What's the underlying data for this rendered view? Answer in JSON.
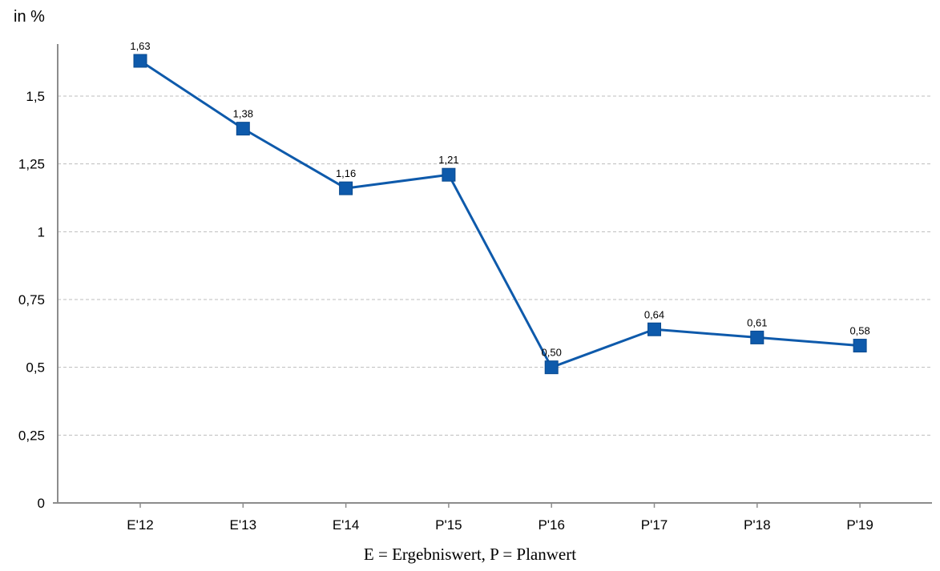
{
  "footnote": "E = Ergebniswert, P = Planwert",
  "chart_data": {
    "type": "line",
    "title": "",
    "xlabel": "",
    "ylabel": "in %",
    "categories": [
      "E'12",
      "E'13",
      "E'14",
      "P'15",
      "P'16",
      "P'17",
      "P'18",
      "P'19"
    ],
    "series": [
      {
        "values": [
          1.63,
          1.38,
          1.16,
          1.21,
          0.5,
          0.64,
          0.61,
          0.58
        ],
        "labels": [
          "1,63",
          "1,38",
          "1,16",
          "1,21",
          "0,50",
          "0,64",
          "0,61",
          "0,58"
        ],
        "color": "#0e5aab",
        "marker": "square"
      }
    ],
    "ylim": [
      0,
      1.75
    ],
    "yticks": [
      0,
      0.25,
      0.5,
      0.75,
      1,
      1.25,
      1.5
    ],
    "ytick_labels": [
      "0",
      "0,25",
      "0,5",
      "0,75",
      "1",
      "1,25",
      "1,5"
    ],
    "grid": true,
    "legend": "none"
  }
}
